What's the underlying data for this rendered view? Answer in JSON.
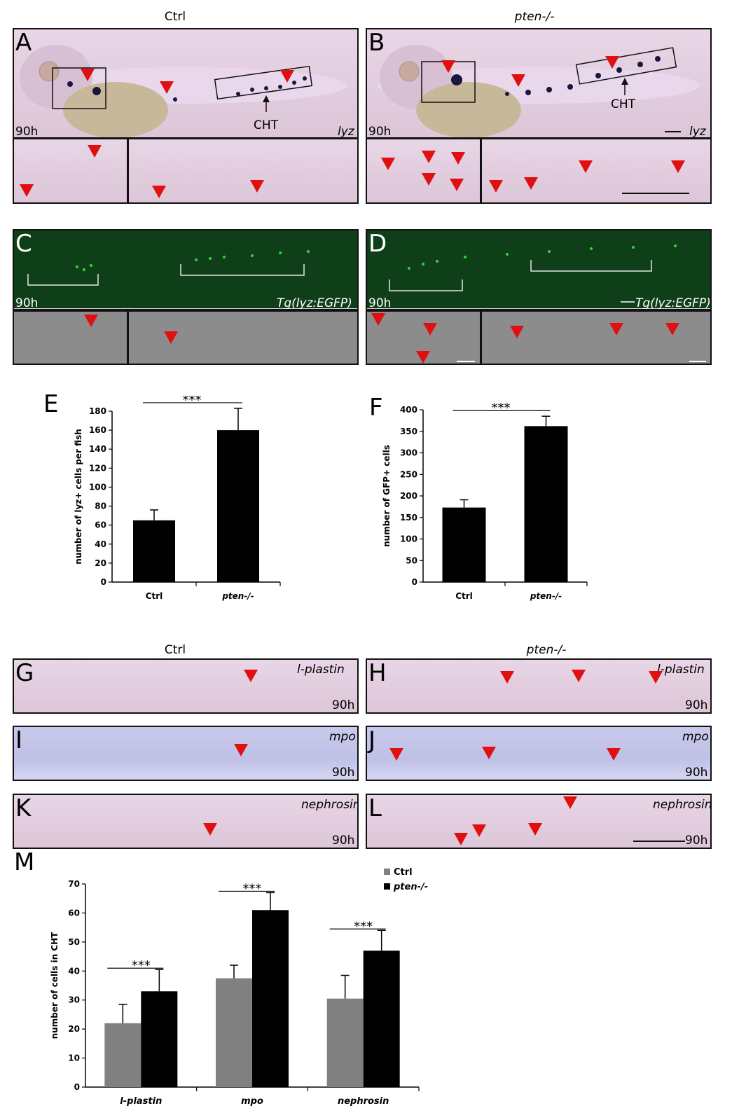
{
  "headers": {
    "top_left": "Ctrl",
    "top_right": "pten-/-",
    "mid_left": "Ctrl",
    "mid_right": "pten-/-"
  },
  "panels": {
    "A": {
      "letter": "A",
      "time": "90h",
      "gene": "lyz",
      "region": "CHT"
    },
    "B": {
      "letter": "B",
      "time": "90h",
      "gene": "lyz",
      "region": "CHT"
    },
    "C": {
      "letter": "C",
      "time": "90h",
      "gene": "Tg(lyz:EGFP)"
    },
    "D": {
      "letter": "D",
      "time": "90h",
      "gene": "Tg(lyz:EGFP)"
    },
    "G": {
      "letter": "G",
      "gene": "l-plastin",
      "time": "90h"
    },
    "H": {
      "letter": "H",
      "gene": "l-plastin",
      "time": "90h"
    },
    "I": {
      "letter": "I",
      "gene": "mpo",
      "time": "90h"
    },
    "J": {
      "letter": "J",
      "gene": "mpo",
      "time": "90h"
    },
    "K": {
      "letter": "K",
      "gene": "nephrosin",
      "time": "90h"
    },
    "L": {
      "letter": "L",
      "gene": "nephrosin",
      "time": "90h"
    }
  },
  "colors": {
    "arrowhead": "#e01010",
    "ctrl_bar_M": "#808080",
    "pten_bar_M": "#000000",
    "gfp_background": "#0f3f19"
  },
  "chart_data": [
    {
      "id": "E",
      "letter": "E",
      "type": "bar",
      "categories": [
        "Ctrl",
        "pten-/-"
      ],
      "values": [
        65,
        160
      ],
      "errors": [
        11,
        23
      ],
      "ylabel": "number of lyz+ cells per fish",
      "ylim": [
        0,
        180
      ],
      "yticks": [
        0,
        20,
        40,
        60,
        80,
        100,
        120,
        140,
        160,
        180
      ],
      "significance": "***"
    },
    {
      "id": "F",
      "letter": "F",
      "type": "bar",
      "categories": [
        "Ctrl",
        "pten-/-"
      ],
      "values": [
        173,
        362
      ],
      "errors": [
        18,
        23
      ],
      "ylabel": "number of GFP+ cells",
      "ylim": [
        0,
        400
      ],
      "yticks": [
        0,
        50,
        100,
        150,
        200,
        250,
        300,
        350,
        400
      ],
      "significance": "***"
    },
    {
      "id": "M",
      "letter": "M",
      "type": "bar",
      "categories": [
        "l-plastin",
        "mpo",
        "nephrosin"
      ],
      "series": [
        {
          "name": "Ctrl",
          "values": [
            22,
            37.5,
            30.5
          ],
          "errors": [
            6.5,
            4.5,
            8
          ]
        },
        {
          "name": "pten-/-",
          "values": [
            33,
            61,
            47
          ],
          "errors": [
            7.5,
            6,
            7
          ]
        }
      ],
      "ylabel": "number of cells in CHT",
      "ylim": [
        0,
        70
      ],
      "yticks": [
        0,
        10,
        20,
        30,
        40,
        50,
        60,
        70
      ],
      "significance": [
        "***",
        "***",
        "***"
      ],
      "legend": "top-right"
    }
  ]
}
